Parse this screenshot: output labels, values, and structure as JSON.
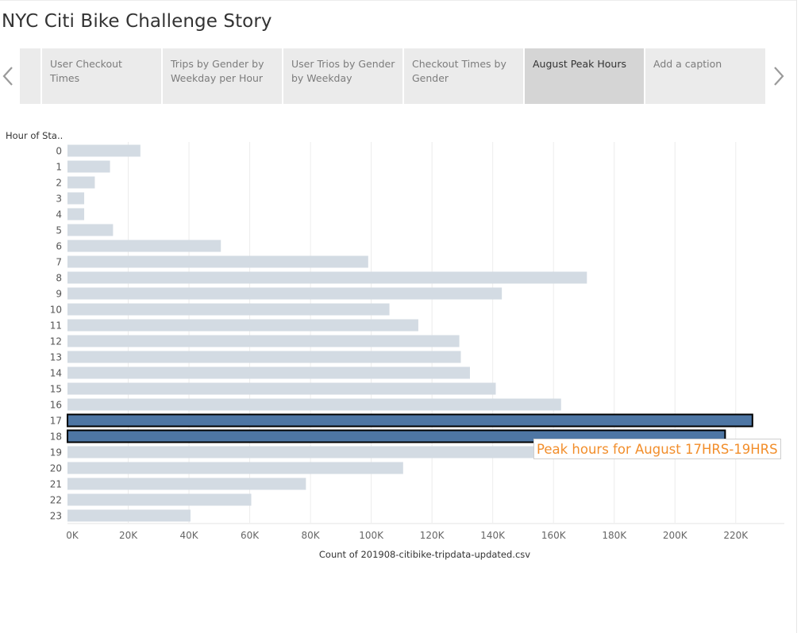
{
  "story": {
    "title": "NYC Citi Bike Challenge Story"
  },
  "nav": {
    "prev_icon": "chevron-left-icon",
    "next_icon": "chevron-right-icon"
  },
  "tabs": [
    {
      "label": "User Checkout Times",
      "active": false
    },
    {
      "label": "Trips by Gender by Weekday per Hour",
      "active": false
    },
    {
      "label": "User Trios by Gender by Weekday",
      "active": false
    },
    {
      "label": "Checkout Times by Gender",
      "active": false
    },
    {
      "label": "August Peak Hours",
      "active": true
    },
    {
      "label": "Add a caption",
      "active": false
    }
  ],
  "annotation": {
    "text": "Peak hours for August 17HRS-19HRS"
  },
  "colors": {
    "bar_default": "#d3dbe3",
    "bar_highlight": "#4e76a4",
    "annotation_text": "#f28e2b"
  },
  "chart_data": {
    "type": "bar",
    "orientation": "horizontal",
    "row_header": "Hour of Sta..",
    "categories": [
      "0",
      "1",
      "2",
      "3",
      "4",
      "5",
      "6",
      "7",
      "8",
      "9",
      "10",
      "11",
      "12",
      "13",
      "14",
      "15",
      "16",
      "17",
      "18",
      "19",
      "20",
      "21",
      "22",
      "23"
    ],
    "values": [
      24000,
      14000,
      9000,
      5500,
      5500,
      15000,
      50500,
      99000,
      171000,
      143000,
      106000,
      115500,
      129000,
      129500,
      132500,
      141000,
      162500,
      225500,
      216500,
      155000,
      110500,
      78500,
      60500,
      40500
    ],
    "highlighted": [
      "17",
      "18"
    ],
    "xlabel": "Count of 201908-citibike-tripdata-updated.csv",
    "xlim": [
      0,
      236000
    ],
    "xticks": [
      0,
      20000,
      40000,
      60000,
      80000,
      100000,
      120000,
      140000,
      160000,
      180000,
      200000,
      220000
    ],
    "xtick_labels": [
      "0K",
      "20K",
      "40K",
      "60K",
      "80K",
      "100K",
      "120K",
      "140K",
      "160K",
      "180K",
      "200K",
      "220K"
    ],
    "grid": "vertical"
  }
}
